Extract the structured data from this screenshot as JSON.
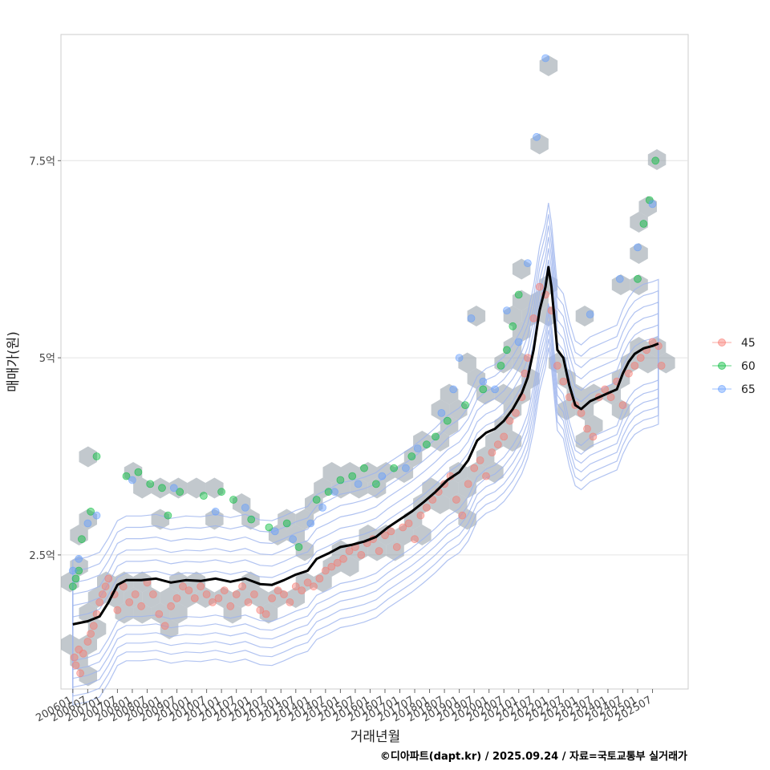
{
  "chart_data": {
    "type": "scatter",
    "xlabel": "거래년월",
    "ylabel": "매매가(원)",
    "caption": "©디아파트(dapt.kr) / 2025.09.24 / 자료=국토교통부 실거래가",
    "x_ticks": [
      "200601",
      "200607",
      "200701",
      "200707",
      "200801",
      "200807",
      "200901",
      "200907",
      "201001",
      "201007",
      "201101",
      "201107",
      "201201",
      "201207",
      "201301",
      "201307",
      "201401",
      "201407",
      "201501",
      "201507",
      "201601",
      "201607",
      "201701",
      "201707",
      "201801",
      "201807",
      "201901",
      "201907",
      "202001",
      "202007",
      "202101",
      "202107",
      "202201",
      "202207",
      "202301",
      "202307",
      "202401",
      "202407",
      "202501",
      "202507"
    ],
    "y_ticks": [
      {
        "value": 2.5,
        "label": "2.5억"
      },
      {
        "value": 5,
        "label": "5억"
      },
      {
        "value": 7.5,
        "label": "7.5억"
      }
    ],
    "ylim": [
      0.8,
      9.1
    ],
    "xlim": [
      2005.6,
      2026.7
    ],
    "grid": true,
    "legend_position": "right",
    "colors": {
      "45": "#f8766d",
      "60": "#00ba38",
      "65": "#619cff",
      "trend": "#000000",
      "hex": "#9aa3ab",
      "contour": "#9db4ee"
    },
    "series": [
      {
        "name": "45",
        "points": [
          [
            2006.05,
            1.2
          ],
          [
            2006.1,
            1.1
          ],
          [
            2006.2,
            1.3
          ],
          [
            2006.25,
            1.0
          ],
          [
            2006.35,
            1.25
          ],
          [
            2006.5,
            1.4
          ],
          [
            2006.6,
            1.5
          ],
          [
            2006.7,
            1.6
          ],
          [
            2006.8,
            1.75
          ],
          [
            2006.9,
            1.9
          ],
          [
            2007.0,
            2.0
          ],
          [
            2007.1,
            2.1
          ],
          [
            2007.2,
            2.2
          ],
          [
            2007.4,
            2.0
          ],
          [
            2007.5,
            1.8
          ],
          [
            2007.7,
            2.1
          ],
          [
            2007.9,
            1.9
          ],
          [
            2008.1,
            2.0
          ],
          [
            2008.3,
            1.85
          ],
          [
            2008.5,
            2.15
          ],
          [
            2008.7,
            2.0
          ],
          [
            2008.9,
            1.75
          ],
          [
            2009.1,
            1.6
          ],
          [
            2009.3,
            1.85
          ],
          [
            2009.5,
            1.95
          ],
          [
            2009.7,
            2.1
          ],
          [
            2009.9,
            2.05
          ],
          [
            2010.1,
            1.95
          ],
          [
            2010.3,
            2.1
          ],
          [
            2010.5,
            2.0
          ],
          [
            2010.7,
            1.9
          ],
          [
            2010.9,
            1.95
          ],
          [
            2011.1,
            2.05
          ],
          [
            2011.3,
            1.85
          ],
          [
            2011.5,
            2.0
          ],
          [
            2011.7,
            2.1
          ],
          [
            2011.9,
            1.9
          ],
          [
            2012.1,
            2.0
          ],
          [
            2012.3,
            1.8
          ],
          [
            2012.5,
            1.75
          ],
          [
            2012.7,
            1.95
          ],
          [
            2012.9,
            2.05
          ],
          [
            2013.1,
            2.0
          ],
          [
            2013.3,
            1.9
          ],
          [
            2013.5,
            2.1
          ],
          [
            2013.7,
            2.05
          ],
          [
            2013.9,
            2.15
          ],
          [
            2014.1,
            2.1
          ],
          [
            2014.3,
            2.2
          ],
          [
            2014.5,
            2.3
          ],
          [
            2014.7,
            2.35
          ],
          [
            2014.9,
            2.4
          ],
          [
            2015.1,
            2.45
          ],
          [
            2015.3,
            2.55
          ],
          [
            2015.5,
            2.6
          ],
          [
            2015.7,
            2.5
          ],
          [
            2015.9,
            2.65
          ],
          [
            2016.1,
            2.7
          ],
          [
            2016.3,
            2.55
          ],
          [
            2016.5,
            2.75
          ],
          [
            2016.7,
            2.8
          ],
          [
            2016.9,
            2.6
          ],
          [
            2017.1,
            2.85
          ],
          [
            2017.3,
            2.9
          ],
          [
            2017.5,
            2.7
          ],
          [
            2017.7,
            3.0
          ],
          [
            2017.9,
            3.1
          ],
          [
            2018.1,
            3.2
          ],
          [
            2018.3,
            3.3
          ],
          [
            2018.5,
            3.4
          ],
          [
            2018.7,
            3.5
          ],
          [
            2018.9,
            3.2
          ],
          [
            2019.1,
            3.0
          ],
          [
            2019.3,
            3.4
          ],
          [
            2019.5,
            3.6
          ],
          [
            2019.7,
            3.7
          ],
          [
            2019.9,
            3.5
          ],
          [
            2020.1,
            3.8
          ],
          [
            2020.3,
            3.9
          ],
          [
            2020.5,
            4.0
          ],
          [
            2020.7,
            4.2
          ],
          [
            2020.9,
            4.3
          ],
          [
            2021.1,
            4.5
          ],
          [
            2021.2,
            4.8
          ],
          [
            2021.3,
            5.0
          ],
          [
            2021.5,
            5.5
          ],
          [
            2021.7,
            5.9
          ],
          [
            2021.9,
            5.8
          ],
          [
            2022.1,
            5.6
          ],
          [
            2022.3,
            4.9
          ],
          [
            2022.5,
            4.7
          ],
          [
            2022.7,
            4.5
          ],
          [
            2022.9,
            4.4
          ],
          [
            2023.1,
            4.3
          ],
          [
            2023.3,
            4.1
          ],
          [
            2023.5,
            4.0
          ],
          [
            2023.7,
            4.5
          ],
          [
            2023.9,
            4.6
          ],
          [
            2024.1,
            4.5
          ],
          [
            2024.3,
            4.7
          ],
          [
            2024.5,
            4.4
          ],
          [
            2024.7,
            4.8
          ],
          [
            2024.9,
            4.9
          ],
          [
            2025.1,
            5.0
          ],
          [
            2025.3,
            5.1
          ],
          [
            2025.5,
            5.2
          ],
          [
            2025.7,
            5.15
          ],
          [
            2025.8,
            4.9
          ]
        ]
      },
      {
        "name": "60",
        "points": [
          [
            2006.0,
            2.1
          ],
          [
            2006.1,
            2.2
          ],
          [
            2006.2,
            2.3
          ],
          [
            2006.3,
            2.7
          ],
          [
            2006.6,
            3.05
          ],
          [
            2006.8,
            3.75
          ],
          [
            2007.8,
            3.5
          ],
          [
            2008.2,
            3.55
          ],
          [
            2008.6,
            3.4
          ],
          [
            2009.0,
            3.35
          ],
          [
            2009.2,
            3.0
          ],
          [
            2009.6,
            3.3
          ],
          [
            2010.4,
            3.25
          ],
          [
            2011.0,
            3.3
          ],
          [
            2011.4,
            3.2
          ],
          [
            2012.0,
            2.95
          ],
          [
            2012.6,
            2.85
          ],
          [
            2013.2,
            2.9
          ],
          [
            2013.6,
            2.6
          ],
          [
            2014.2,
            3.2
          ],
          [
            2014.6,
            3.3
          ],
          [
            2015.0,
            3.45
          ],
          [
            2015.4,
            3.5
          ],
          [
            2015.8,
            3.6
          ],
          [
            2016.2,
            3.4
          ],
          [
            2016.8,
            3.6
          ],
          [
            2017.4,
            3.75
          ],
          [
            2017.9,
            3.9
          ],
          [
            2018.2,
            4.0
          ],
          [
            2018.6,
            4.2
          ],
          [
            2019.2,
            4.4
          ],
          [
            2019.8,
            4.6
          ],
          [
            2020.4,
            4.9
          ],
          [
            2020.6,
            5.1
          ],
          [
            2020.8,
            5.4
          ],
          [
            2021.0,
            5.8
          ],
          [
            2025.0,
            6.0
          ],
          [
            2025.2,
            6.7
          ],
          [
            2025.4,
            7.0
          ],
          [
            2025.6,
            7.5
          ]
        ]
      },
      {
        "name": "65",
        "points": [
          [
            2006.0,
            2.3
          ],
          [
            2006.2,
            2.45
          ],
          [
            2006.5,
            2.9
          ],
          [
            2006.8,
            3.0
          ],
          [
            2008.0,
            3.45
          ],
          [
            2009.4,
            3.35
          ],
          [
            2010.8,
            3.05
          ],
          [
            2011.8,
            3.1
          ],
          [
            2012.8,
            2.8
          ],
          [
            2013.4,
            2.7
          ],
          [
            2014.0,
            2.9
          ],
          [
            2014.4,
            3.1
          ],
          [
            2014.8,
            3.3
          ],
          [
            2015.6,
            3.4
          ],
          [
            2016.4,
            3.5
          ],
          [
            2017.2,
            3.6
          ],
          [
            2017.6,
            3.85
          ],
          [
            2018.4,
            4.3
          ],
          [
            2018.8,
            4.6
          ],
          [
            2019.0,
            5.0
          ],
          [
            2019.4,
            5.5
          ],
          [
            2019.8,
            4.7
          ],
          [
            2020.2,
            4.6
          ],
          [
            2020.6,
            5.6
          ],
          [
            2021.0,
            5.2
          ],
          [
            2021.3,
            6.2
          ],
          [
            2021.6,
            7.8
          ],
          [
            2021.9,
            8.8
          ],
          [
            2023.4,
            5.55
          ],
          [
            2024.4,
            6.0
          ],
          [
            2025.0,
            6.4
          ],
          [
            2025.5,
            6.95
          ]
        ]
      }
    ],
    "trend_line": {
      "name": "moving-average",
      "points": [
        [
          2006.0,
          1.62
        ],
        [
          2006.5,
          1.66
        ],
        [
          2006.9,
          1.72
        ],
        [
          2007.2,
          1.9
        ],
        [
          2007.5,
          2.12
        ],
        [
          2007.8,
          2.18
        ],
        [
          2008.3,
          2.18
        ],
        [
          2008.8,
          2.2
        ],
        [
          2009.3,
          2.15
        ],
        [
          2009.8,
          2.18
        ],
        [
          2010.3,
          2.17
        ],
        [
          2010.8,
          2.2
        ],
        [
          2011.3,
          2.16
        ],
        [
          2011.8,
          2.2
        ],
        [
          2012.3,
          2.13
        ],
        [
          2012.7,
          2.12
        ],
        [
          2013.1,
          2.18
        ],
        [
          2013.5,
          2.25
        ],
        [
          2013.9,
          2.3
        ],
        [
          2014.2,
          2.45
        ],
        [
          2014.6,
          2.52
        ],
        [
          2015.0,
          2.6
        ],
        [
          2015.4,
          2.63
        ],
        [
          2015.8,
          2.67
        ],
        [
          2016.2,
          2.73
        ],
        [
          2016.6,
          2.85
        ],
        [
          2017.0,
          2.95
        ],
        [
          2017.4,
          3.05
        ],
        [
          2017.8,
          3.17
        ],
        [
          2018.2,
          3.3
        ],
        [
          2018.6,
          3.45
        ],
        [
          2019.0,
          3.55
        ],
        [
          2019.3,
          3.7
        ],
        [
          2019.6,
          3.95
        ],
        [
          2019.9,
          4.05
        ],
        [
          2020.2,
          4.1
        ],
        [
          2020.5,
          4.2
        ],
        [
          2020.8,
          4.35
        ],
        [
          2021.1,
          4.55
        ],
        [
          2021.3,
          4.75
        ],
        [
          2021.5,
          5.1
        ],
        [
          2021.7,
          5.6
        ],
        [
          2021.9,
          5.9
        ],
        [
          2022.0,
          6.15
        ],
        [
          2022.1,
          5.9
        ],
        [
          2022.2,
          5.5
        ],
        [
          2022.3,
          5.1
        ],
        [
          2022.5,
          5.0
        ],
        [
          2022.7,
          4.65
        ],
        [
          2022.9,
          4.4
        ],
        [
          2023.1,
          4.35
        ],
        [
          2023.4,
          4.45
        ],
        [
          2023.7,
          4.5
        ],
        [
          2024.0,
          4.55
        ],
        [
          2024.3,
          4.6
        ],
        [
          2024.5,
          4.8
        ],
        [
          2024.7,
          4.95
        ],
        [
          2024.9,
          5.05
        ],
        [
          2025.2,
          5.12
        ],
        [
          2025.5,
          5.15
        ],
        [
          2025.7,
          5.18
        ]
      ]
    },
    "legend": [
      "45",
      "60",
      "65"
    ]
  }
}
